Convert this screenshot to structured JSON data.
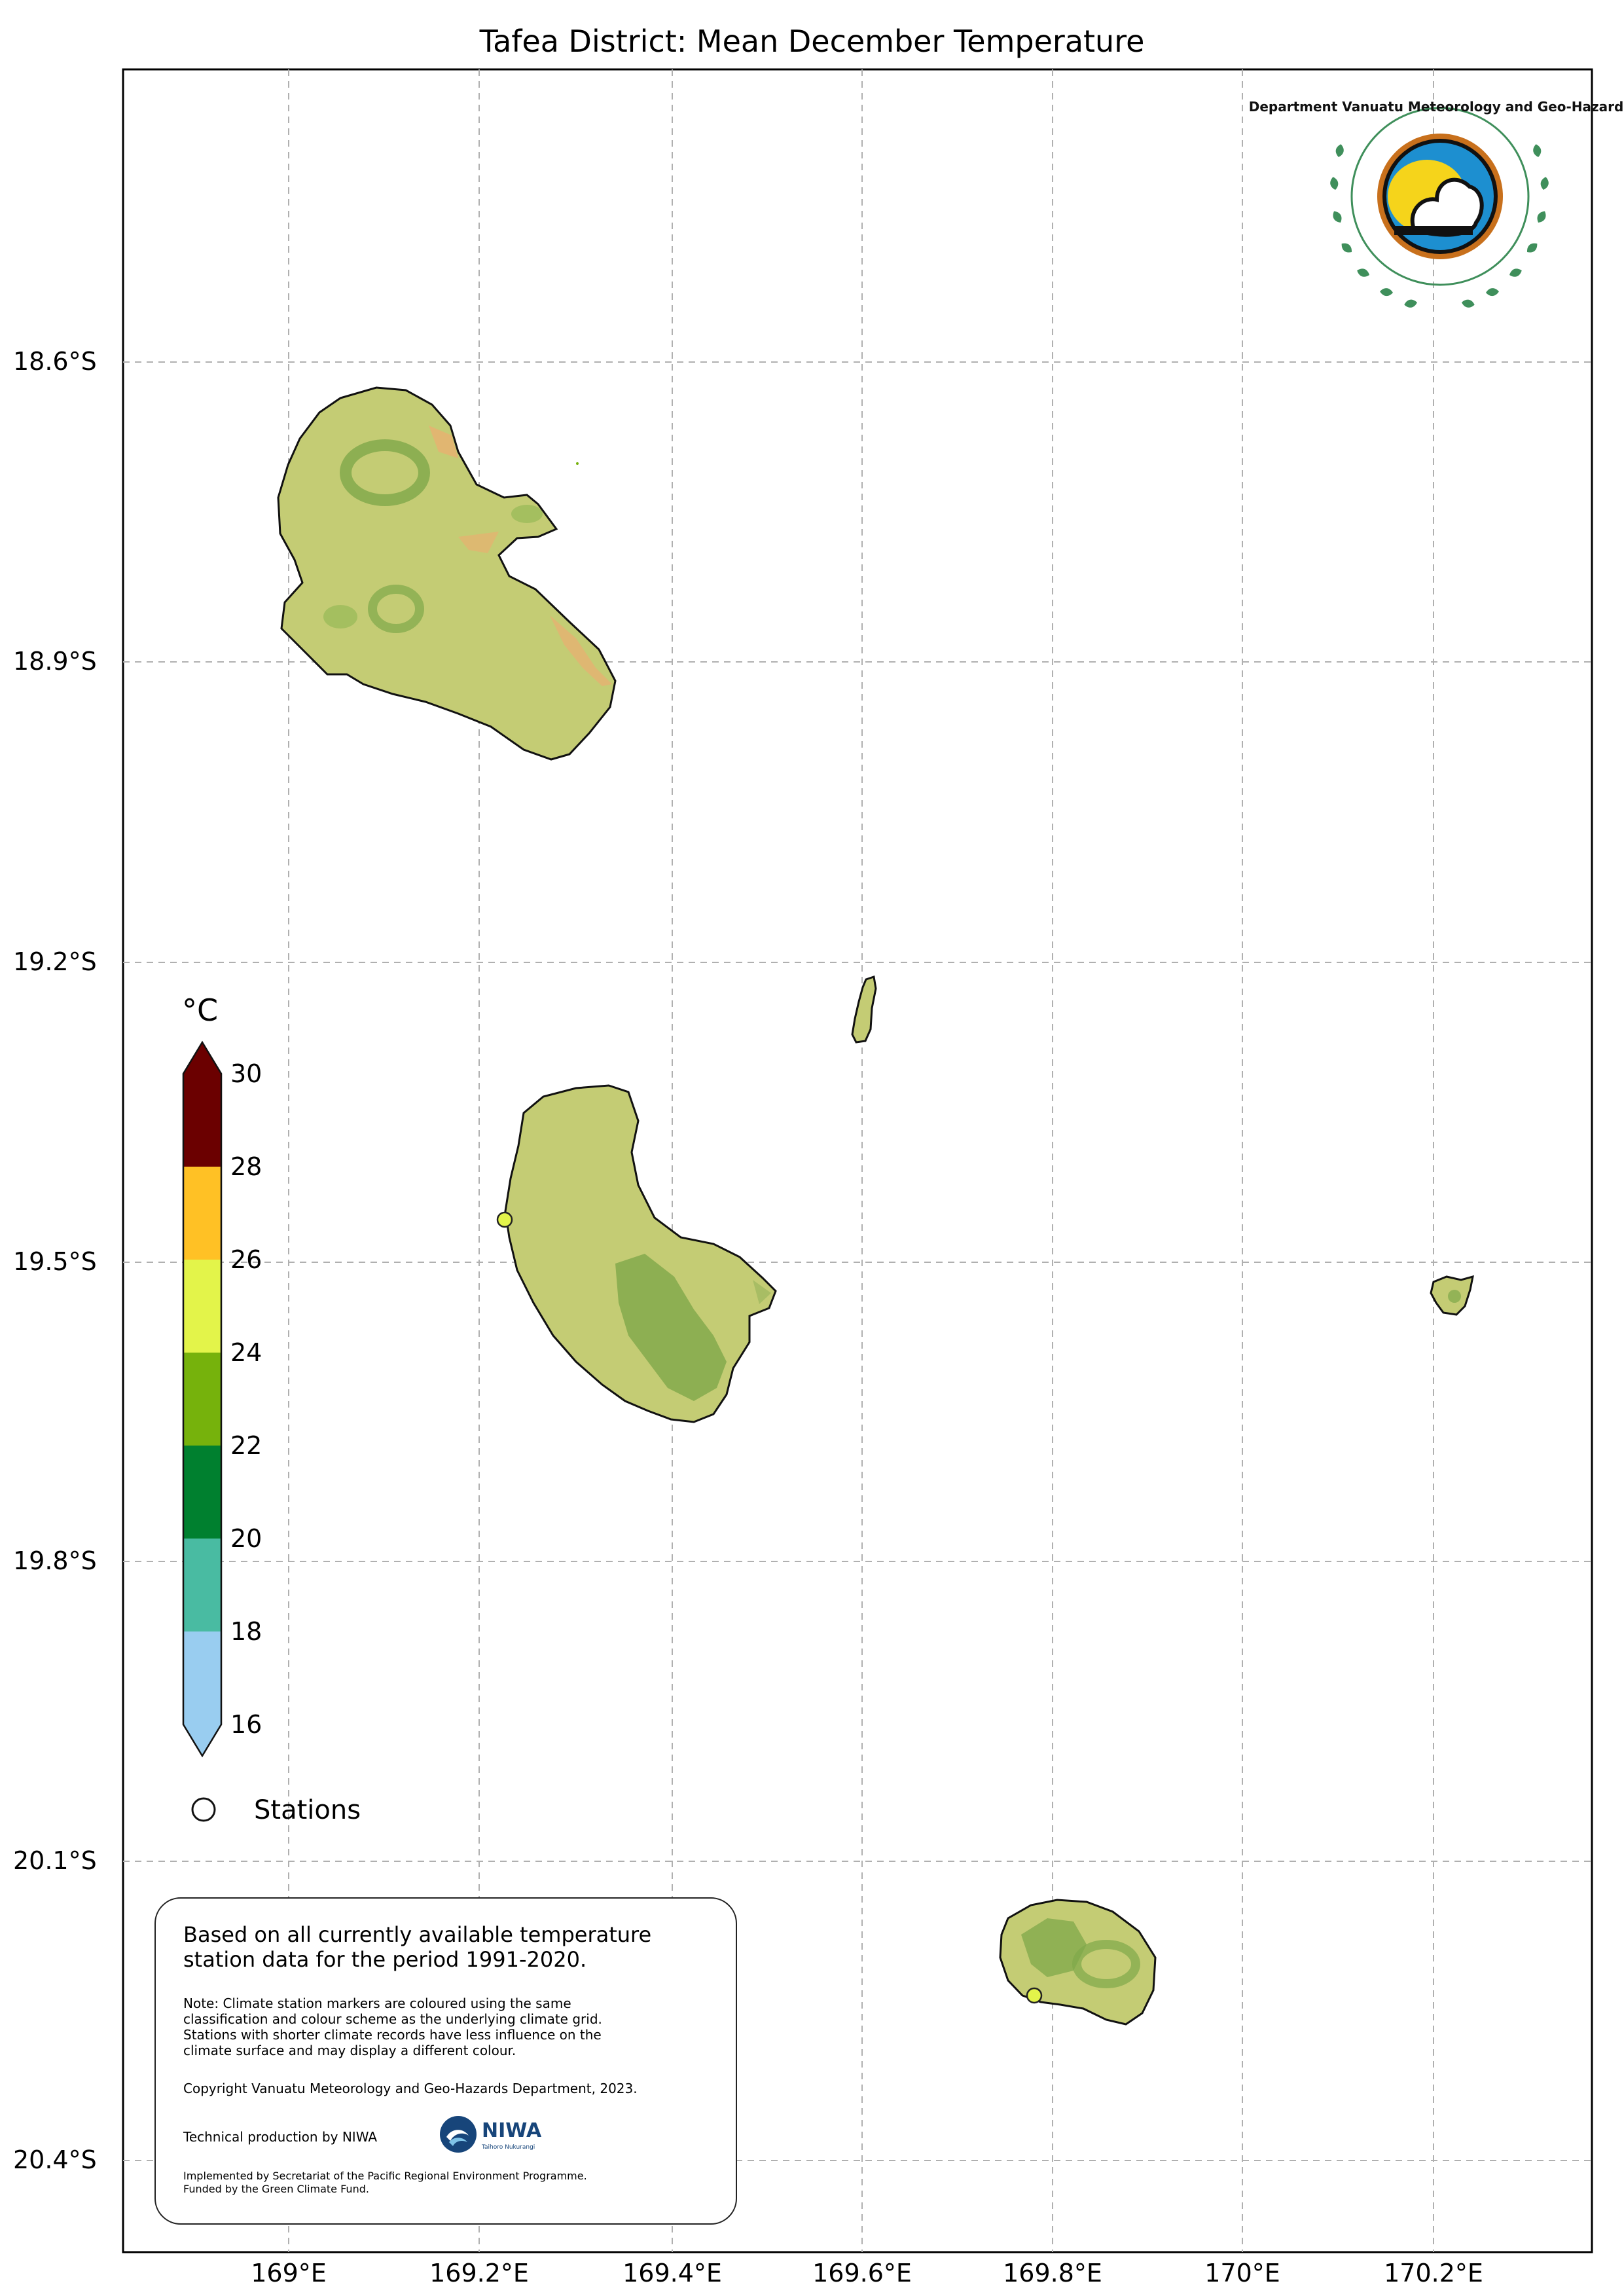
{
  "title": "Tafea District: Mean December Temperature",
  "axes": {
    "lat_labels": [
      "18.6°S",
      "18.9°S",
      "19.2°S",
      "19.5°S",
      "19.8°S",
      "20.1°S",
      "20.4°S"
    ],
    "lon_labels": [
      "169°E",
      "169.2°E",
      "169.4°E",
      "169.6°E",
      "169.8°E",
      "170°E",
      "170.2°E"
    ]
  },
  "colorbar": {
    "unit": "°C",
    "ticks": [
      "30",
      "28",
      "26",
      "24",
      "22",
      "20",
      "18",
      "16"
    ],
    "colors": [
      "#6b0000",
      "#ffc125",
      "#e3f44a",
      "#76b20c",
      "#00802f",
      "#49bba2",
      "#99cdf0"
    ],
    "extend": "both"
  },
  "legend": {
    "stations_label": "Stations"
  },
  "note": {
    "main": "Based on all currently available temperature\nstation data for the period 1991-2020.",
    "detail": "Note: Climate station markers are coloured using the same\nclassification and colour scheme as the underlying climate grid.\nStations with shorter climate records have less influence on the\nclimate surface and may display a different colour.",
    "copyright": "Copyright Vanuatu Meteorology and Geo-Hazards Department, 2023.",
    "technical": "Technical production by NIWA",
    "implemented": "Implemented by Secretariat of the Pacific Regional Environment Programme.\nFunded by the Green Climate Fund."
  },
  "logos": {
    "vmgd_text": "Department Vanuatu Meteorology and Geo-Hazards",
    "niwa_text": "NIWA",
    "niwa_subtext": "Taihoro Nukurangi"
  },
  "stations": [
    {
      "lon": 169.23,
      "lat": -19.46,
      "color": "#e3f44a"
    },
    {
      "lon": 169.78,
      "lat": -20.26,
      "color": "#e3f44a"
    }
  ],
  "colors": {
    "land": "#c4cc74",
    "land_high": "#7fa84a",
    "land_warm": "#e8b071",
    "grid": "#b0b0b0"
  }
}
